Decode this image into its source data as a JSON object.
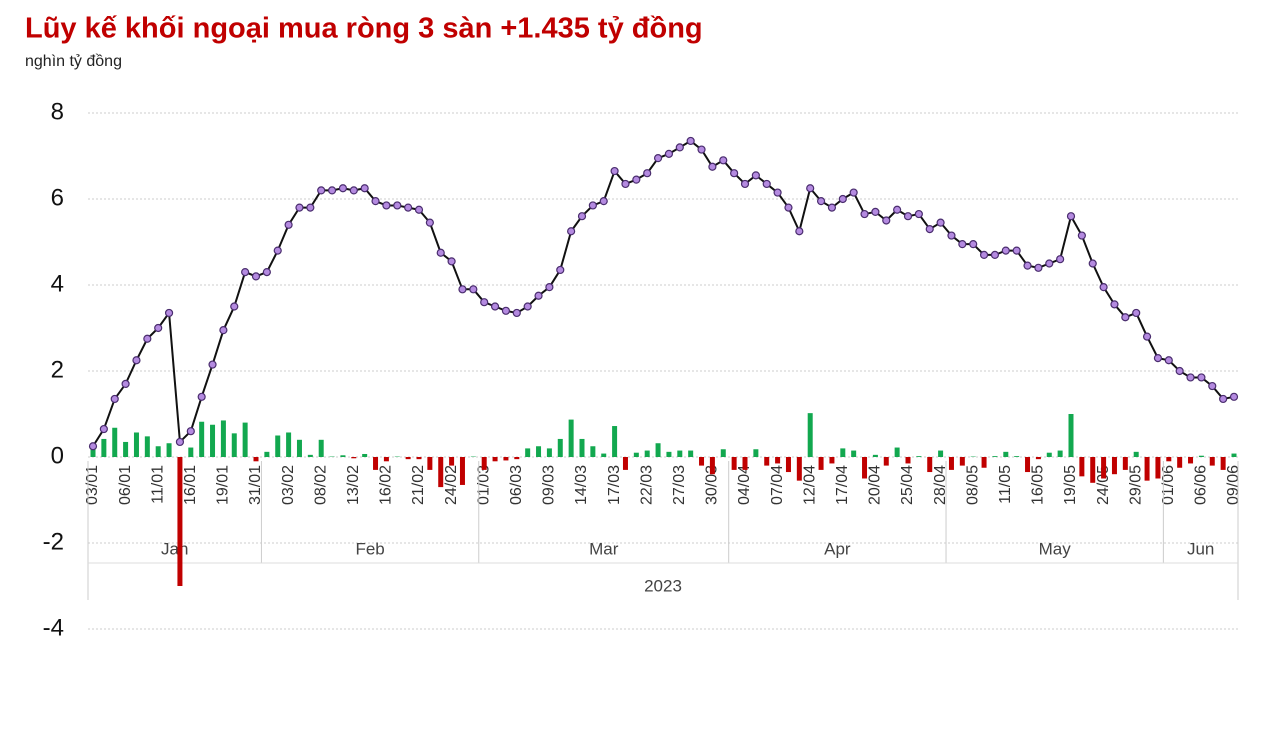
{
  "chart_data": {
    "type": "bar-line",
    "title": "Lũy kế khối ngoại mua ròng 3 sàn +1.435 tỷ đồng",
    "subtitle": "nghìn tỷ đồng",
    "categories": [
      "03/01",
      null,
      null,
      "06/01",
      null,
      null,
      "11/01",
      null,
      null,
      "16/01",
      null,
      null,
      "19/01",
      null,
      null,
      "31/01",
      null,
      null,
      "03/02",
      null,
      null,
      "08/02",
      null,
      null,
      "13/02",
      null,
      null,
      "16/02",
      null,
      null,
      "21/02",
      null,
      null,
      "24/02",
      null,
      null,
      "01/03",
      null,
      null,
      "06/03",
      null,
      null,
      "09/03",
      null,
      null,
      "14/03",
      null,
      null,
      "17/03",
      null,
      null,
      "22/03",
      null,
      null,
      "27/03",
      null,
      null,
      "30/03",
      null,
      null,
      "04/04",
      null,
      null,
      "07/04",
      null,
      null,
      "12/04",
      null,
      null,
      "17/04",
      null,
      null,
      "20/04",
      null,
      null,
      "25/04",
      null,
      null,
      "28/04",
      null,
      null,
      "08/05",
      null,
      null,
      "11/05",
      null,
      null,
      "16/05",
      null,
      null,
      "19/05",
      null,
      null,
      "24/05",
      null,
      null,
      "29/05",
      null,
      null,
      "01/06",
      null,
      null,
      "06/06",
      null,
      null,
      "09/06"
    ],
    "months": [
      {
        "name": "Jan",
        "first": 0,
        "last": 15
      },
      {
        "name": "Feb",
        "first": 16,
        "last": 35
      },
      {
        "name": "Mar",
        "first": 36,
        "last": 58
      },
      {
        "name": "Apr",
        "first": 59,
        "last": 78
      },
      {
        "name": "May",
        "first": 79,
        "last": 98
      },
      {
        "name": "Jun",
        "first": 99,
        "last": 105
      }
    ],
    "year": "2023",
    "series": [
      {
        "type": "bar",
        "positive_color": "#12a84f",
        "negative_color": "#c00000",
        "values": [
          0.25,
          0.42,
          0.68,
          0.35,
          0.57,
          0.48,
          0.25,
          0.32,
          -3.0,
          0.22,
          0.82,
          0.75,
          0.85,
          0.55,
          0.8,
          -0.1,
          0.12,
          0.5,
          0.57,
          0.4,
          0.05,
          0.4,
          0.01,
          0.04,
          -0.03,
          0.07,
          -0.3,
          -0.1,
          0.01,
          -0.05,
          -0.05,
          -0.3,
          -0.7,
          -0.2,
          -0.65,
          0.01,
          -0.3,
          -0.1,
          -0.08,
          -0.05,
          0.2,
          0.25,
          0.2,
          0.42,
          0.87,
          0.42,
          0.25,
          0.08,
          0.72,
          -0.3,
          0.1,
          0.15,
          0.32,
          0.12,
          0.15,
          0.15,
          -0.2,
          -0.4,
          0.18,
          -0.3,
          -0.3,
          0.18,
          -0.2,
          -0.15,
          -0.35,
          -0.55,
          1.02,
          -0.3,
          -0.15,
          0.2,
          0.15,
          -0.5,
          0.05,
          -0.2,
          0.22,
          -0.15,
          0.02,
          -0.35,
          0.15,
          -0.3,
          -0.2,
          0.01,
          -0.25,
          0.02,
          0.12,
          0.02,
          -0.35,
          -0.05,
          0.1,
          0.15,
          1.0,
          -0.45,
          -0.6,
          -0.5,
          -0.4,
          -0.3,
          0.12,
          -0.55,
          -0.5,
          -0.1,
          -0.25,
          -0.15,
          0.03,
          -0.2,
          -0.3,
          0.08
        ]
      },
      {
        "type": "line",
        "color": "#111111",
        "marker_color": "#b48ae0",
        "values": [
          0.25,
          0.65,
          1.35,
          1.7,
          2.25,
          2.75,
          3.0,
          3.35,
          0.35,
          0.6,
          1.4,
          2.15,
          2.95,
          3.5,
          4.3,
          4.2,
          4.3,
          4.8,
          5.4,
          5.8,
          5.8,
          6.2,
          6.2,
          6.25,
          6.2,
          6.25,
          5.95,
          5.85,
          5.85,
          5.8,
          5.75,
          5.45,
          4.75,
          4.55,
          3.9,
          3.9,
          3.6,
          3.5,
          3.4,
          3.35,
          3.5,
          3.75,
          3.95,
          4.35,
          5.25,
          5.6,
          5.85,
          5.95,
          6.65,
          6.35,
          6.45,
          6.6,
          6.95,
          7.05,
          7.2,
          7.35,
          7.15,
          6.75,
          6.9,
          6.6,
          6.35,
          6.55,
          6.35,
          6.15,
          5.8,
          5.25,
          6.25,
          5.95,
          5.8,
          6.0,
          6.15,
          5.65,
          5.7,
          5.5,
          5.75,
          5.6,
          5.65,
          5.3,
          5.45,
          5.15,
          4.95,
          4.95,
          4.7,
          4.7,
          4.8,
          4.8,
          4.45,
          4.4,
          4.5,
          4.6,
          5.6,
          5.15,
          4.5,
          3.95,
          3.55,
          3.25,
          3.35,
          2.8,
          2.3,
          2.25,
          2.0,
          1.85,
          1.85,
          1.65,
          1.35,
          1.4
        ]
      }
    ],
    "ylim": [
      -4,
      8
    ],
    "yticks": [
      8,
      6,
      4,
      2,
      0,
      -2,
      -4
    ],
    "grid": true
  }
}
